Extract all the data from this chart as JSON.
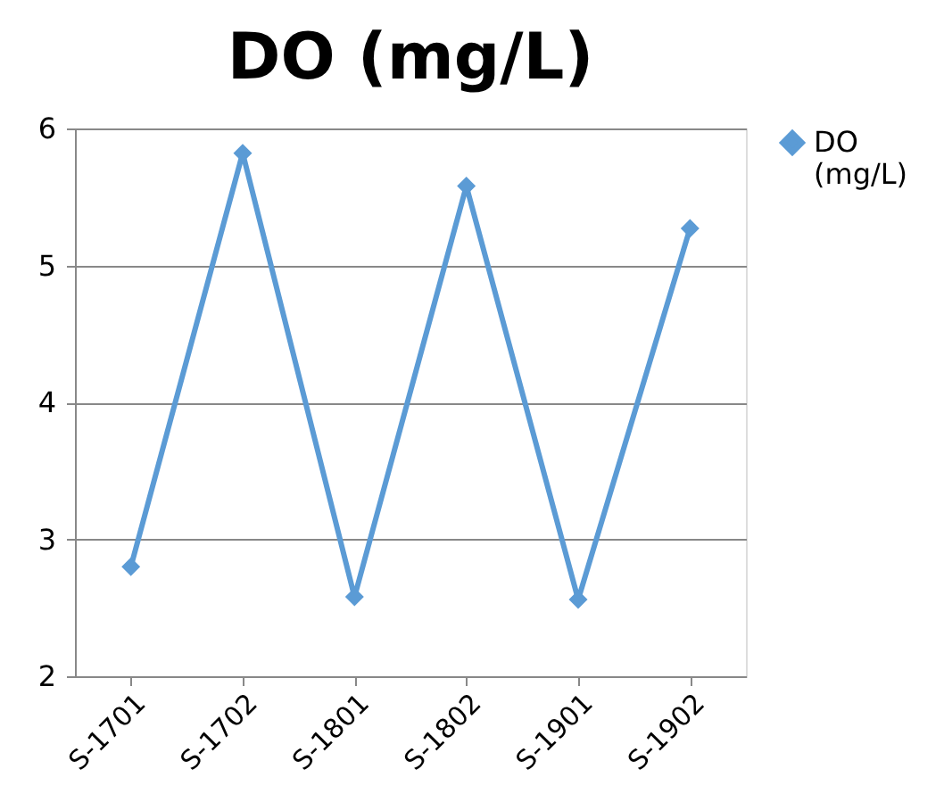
{
  "chart_data": {
    "type": "line",
    "title": "DO (mg/L)",
    "categories": [
      "S-1701",
      "S-1702",
      "S-1801",
      "S-1802",
      "S-1901",
      "S-1902"
    ],
    "series": [
      {
        "name": "DO (mg/L)",
        "color": "#5b9bd5",
        "values": [
          2.8,
          5.82,
          2.58,
          5.58,
          2.56,
          5.27
        ]
      }
    ],
    "ylim": [
      2,
      6
    ],
    "yticks": [
      2,
      3,
      4,
      5,
      6
    ],
    "grid": "y",
    "legend": "right",
    "marker": "diamond",
    "line_style": "solid"
  }
}
